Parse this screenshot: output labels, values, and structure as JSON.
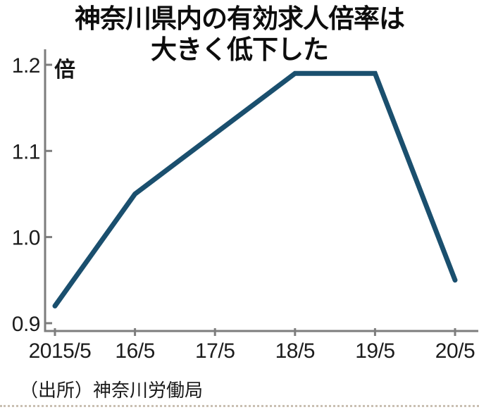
{
  "chart_data": {
    "type": "line",
    "title": "神奈川県内の有効求人倍率は大きく低下した",
    "title_lines": [
      "神奈川県内の有効求人倍率は",
      "大きく低下した"
    ],
    "unit_label": "倍",
    "x_labels": [
      "2015/5",
      "16/5",
      "17/5",
      "18/5",
      "19/5",
      "20/5"
    ],
    "values": [
      0.92,
      1.05,
      1.12,
      1.19,
      1.19,
      0.95
    ],
    "y_ticks": [
      1.2,
      1.1,
      1.0,
      0.9
    ],
    "ylim": [
      0.89,
      1.22
    ],
    "grid": "off",
    "legend": "none",
    "line_color": "#1a4f6e",
    "axis_color": "#7d7d7d",
    "source": "（出所）神奈川労働局"
  }
}
